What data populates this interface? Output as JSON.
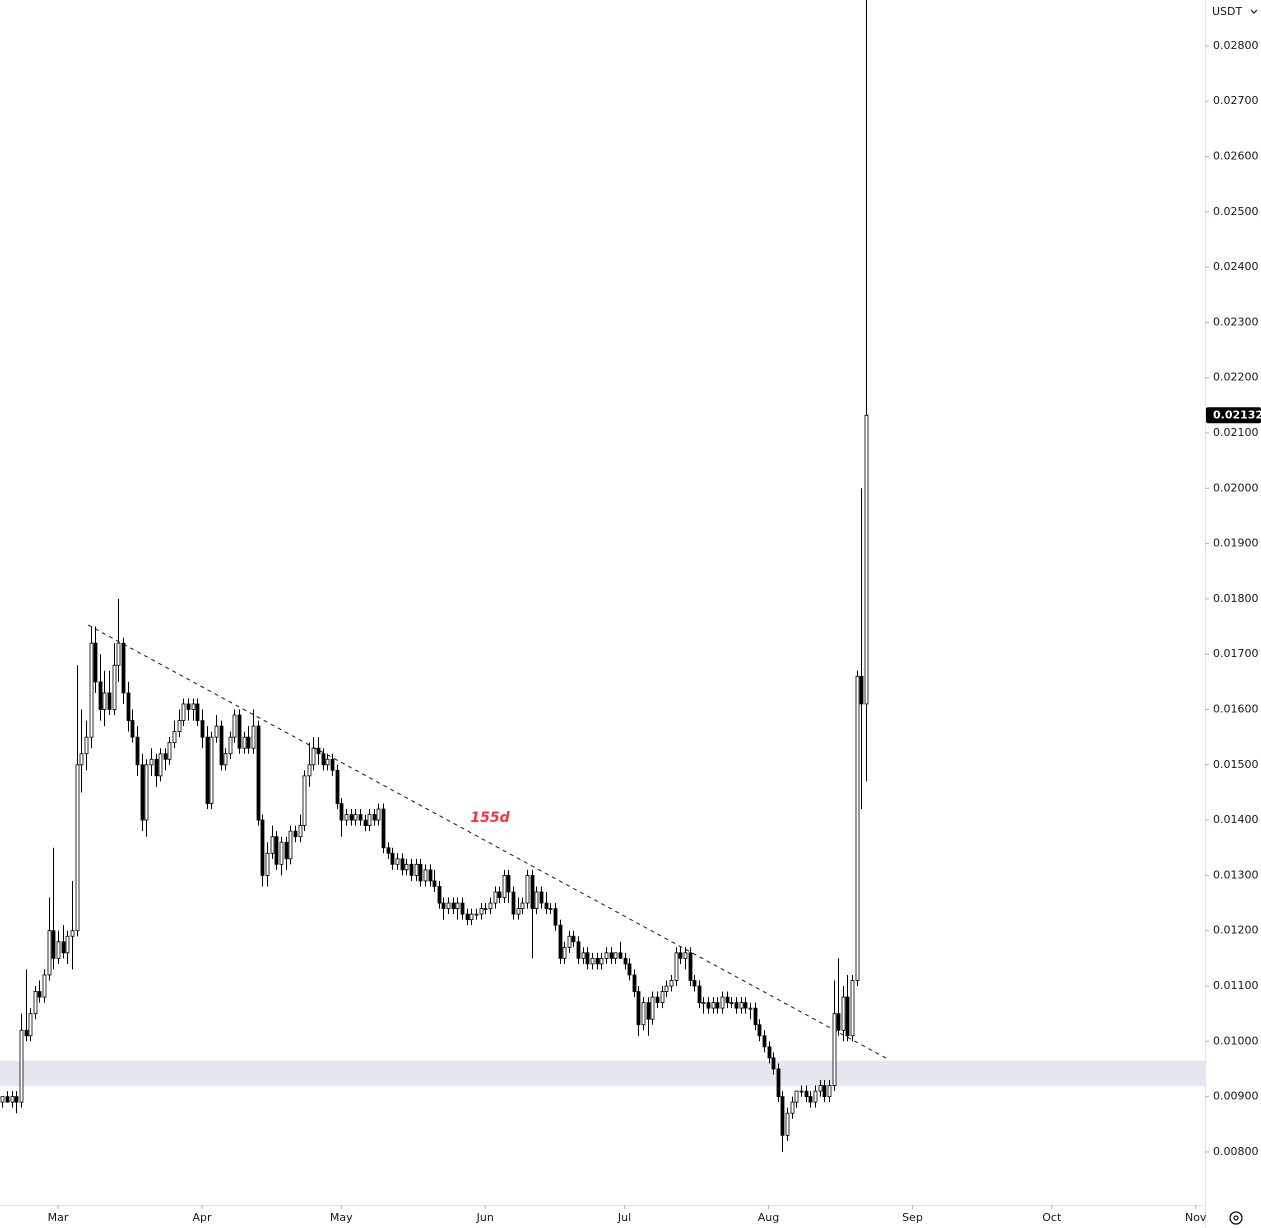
{
  "chart_data": {
    "type": "candlestick",
    "currency": "USDT",
    "last_price": 0.02132,
    "annotation": "155d",
    "up_color": "#ffffff",
    "down_color": "#000000",
    "border_color": "#000000",
    "zone": [
      0.00919,
      0.00965
    ],
    "trendline": {
      "x": [
        18.45,
        191.1
      ],
      "y": [
        0.01753,
        0.00966
      ]
    },
    "xlim": [
      -0.5,
      259
    ],
    "ylim": [
      0.00704,
      0.02883
    ],
    "xticks": [
      {
        "value": 12,
        "label": "Mar"
      },
      {
        "value": 43,
        "label": "Apr"
      },
      {
        "value": 73,
        "label": "May"
      },
      {
        "value": 104,
        "label": "Jun"
      },
      {
        "value": 134,
        "label": "Jul"
      },
      {
        "value": 165,
        "label": "Aug"
      },
      {
        "value": 196,
        "label": "Sep"
      },
      {
        "value": 226,
        "label": "Oct"
      },
      {
        "value": 257,
        "label": "Nov"
      }
    ],
    "yticks": [
      {
        "value": 0.008,
        "label": "0.00800"
      },
      {
        "value": 0.009,
        "label": "0.00900"
      },
      {
        "value": 0.01,
        "label": "0.01000"
      },
      {
        "value": 0.011,
        "label": "0.01100"
      },
      {
        "value": 0.012,
        "label": "0.01200"
      },
      {
        "value": 0.013,
        "label": "0.01300"
      },
      {
        "value": 0.014,
        "label": "0.01400"
      },
      {
        "value": 0.015,
        "label": "0.01500"
      },
      {
        "value": 0.016,
        "label": "0.01600"
      },
      {
        "value": 0.017,
        "label": "0.01700"
      },
      {
        "value": 0.018,
        "label": "0.01800"
      },
      {
        "value": 0.019,
        "label": "0.01900"
      },
      {
        "value": 0.02,
        "label": "0.02000"
      },
      {
        "value": 0.021,
        "label": "0.02100"
      },
      {
        "value": 0.022,
        "label": "0.02200"
      },
      {
        "value": 0.023,
        "label": "0.02300"
      },
      {
        "value": 0.024,
        "label": "0.02400"
      },
      {
        "value": 0.025,
        "label": "0.02500"
      },
      {
        "value": 0.026,
        "label": "0.02600"
      },
      {
        "value": 0.027,
        "label": "0.02700"
      },
      {
        "value": 0.028,
        "label": "0.02800"
      }
    ],
    "ohlc": [
      [
        0.0089,
        0.009,
        0.0088,
        0.009
      ],
      [
        0.009,
        0.0091,
        0.0089,
        0.0089
      ],
      [
        0.0089,
        0.0091,
        0.0088,
        0.009
      ],
      [
        0.009,
        0.0091,
        0.0087,
        0.0089
      ],
      [
        0.0089,
        0.0105,
        0.0088,
        0.0102
      ],
      [
        0.0102,
        0.0113,
        0.01,
        0.0101
      ],
      [
        0.0101,
        0.0106,
        0.01,
        0.0105
      ],
      [
        0.0105,
        0.011,
        0.0104,
        0.0109
      ],
      [
        0.0109,
        0.0111,
        0.0107,
        0.0108
      ],
      [
        0.0108,
        0.0113,
        0.0107,
        0.0112
      ],
      [
        0.0112,
        0.0126,
        0.0111,
        0.012
      ],
      [
        0.012,
        0.0135,
        0.0113,
        0.0115
      ],
      [
        0.0115,
        0.012,
        0.0114,
        0.0118
      ],
      [
        0.0118,
        0.0121,
        0.0115,
        0.0116
      ],
      [
        0.0116,
        0.012,
        0.0114,
        0.0119
      ],
      [
        0.0119,
        0.0129,
        0.0113,
        0.012
      ],
      [
        0.012,
        0.0168,
        0.0119,
        0.015
      ],
      [
        0.015,
        0.016,
        0.0145,
        0.0152
      ],
      [
        0.0152,
        0.0158,
        0.0149,
        0.0155
      ],
      [
        0.0155,
        0.0175,
        0.0153,
        0.0172
      ],
      [
        0.0172,
        0.0175,
        0.0163,
        0.0165
      ],
      [
        0.0165,
        0.017,
        0.0158,
        0.016
      ],
      [
        0.016,
        0.0167,
        0.0157,
        0.0163
      ],
      [
        0.0163,
        0.0167,
        0.0159,
        0.016
      ],
      [
        0.016,
        0.0172,
        0.0159,
        0.0168
      ],
      [
        0.0168,
        0.018,
        0.0165,
        0.0172
      ],
      [
        0.0172,
        0.0173,
        0.0161,
        0.0163
      ],
      [
        0.0163,
        0.0165,
        0.0156,
        0.0158
      ],
      [
        0.0158,
        0.016,
        0.0154,
        0.0155
      ],
      [
        0.0155,
        0.0157,
        0.0148,
        0.015
      ],
      [
        0.015,
        0.0152,
        0.0138,
        0.014
      ],
      [
        0.014,
        0.0151,
        0.0137,
        0.015
      ],
      [
        0.015,
        0.0153,
        0.0148,
        0.0151
      ],
      [
        0.0151,
        0.0152,
        0.0146,
        0.0148
      ],
      [
        0.0148,
        0.0153,
        0.0147,
        0.0152
      ],
      [
        0.0152,
        0.0153,
        0.0149,
        0.0151
      ],
      [
        0.0151,
        0.0155,
        0.015,
        0.0154
      ],
      [
        0.0154,
        0.0158,
        0.0153,
        0.0156
      ],
      [
        0.0156,
        0.016,
        0.0155,
        0.0158
      ],
      [
        0.0158,
        0.0162,
        0.0157,
        0.0161
      ],
      [
        0.0161,
        0.0162,
        0.0158,
        0.016
      ],
      [
        0.016,
        0.0162,
        0.0158,
        0.0161
      ],
      [
        0.0161,
        0.0162,
        0.0157,
        0.0158
      ],
      [
        0.0158,
        0.016,
        0.0153,
        0.0155
      ],
      [
        0.0155,
        0.0157,
        0.0142,
        0.0143
      ],
      [
        0.0143,
        0.0156,
        0.0142,
        0.0155
      ],
      [
        0.0155,
        0.0159,
        0.0154,
        0.0157
      ],
      [
        0.0157,
        0.0158,
        0.0149,
        0.015
      ],
      [
        0.015,
        0.0153,
        0.0149,
        0.0152
      ],
      [
        0.0152,
        0.0156,
        0.0151,
        0.0155
      ],
      [
        0.0155,
        0.016,
        0.0154,
        0.0159
      ],
      [
        0.0159,
        0.016,
        0.0152,
        0.0153
      ],
      [
        0.0153,
        0.0156,
        0.0152,
        0.0155
      ],
      [
        0.0155,
        0.0157,
        0.0152,
        0.0153
      ],
      [
        0.0153,
        0.016,
        0.0152,
        0.0157
      ],
      [
        0.0157,
        0.0158,
        0.0139,
        0.014
      ],
      [
        0.014,
        0.0141,
        0.0128,
        0.013
      ],
      [
        0.013,
        0.0136,
        0.0128,
        0.0134
      ],
      [
        0.0134,
        0.0139,
        0.0133,
        0.0137
      ],
      [
        0.0137,
        0.0138,
        0.0131,
        0.0132
      ],
      [
        0.0132,
        0.0137,
        0.013,
        0.0136
      ],
      [
        0.0136,
        0.0137,
        0.0131,
        0.0133
      ],
      [
        0.0133,
        0.0139,
        0.0132,
        0.0138
      ],
      [
        0.0138,
        0.0139,
        0.0136,
        0.0137
      ],
      [
        0.0137,
        0.0141,
        0.0136,
        0.0139
      ],
      [
        0.0139,
        0.0149,
        0.0138,
        0.0148
      ],
      [
        0.0148,
        0.0154,
        0.0146,
        0.015
      ],
      [
        0.015,
        0.0155,
        0.0149,
        0.0153
      ],
      [
        0.0153,
        0.0155,
        0.015,
        0.0152
      ],
      [
        0.0152,
        0.0153,
        0.0149,
        0.015
      ],
      [
        0.015,
        0.0152,
        0.0149,
        0.0151
      ],
      [
        0.0151,
        0.0152,
        0.0148,
        0.0149
      ],
      [
        0.0149,
        0.015,
        0.0142,
        0.0143
      ],
      [
        0.0143,
        0.0144,
        0.0137,
        0.014
      ],
      [
        0.014,
        0.0142,
        0.0139,
        0.0141
      ],
      [
        0.0141,
        0.0142,
        0.0139,
        0.014
      ],
      [
        0.014,
        0.0142,
        0.0139,
        0.0141
      ],
      [
        0.0141,
        0.0142,
        0.0139,
        0.014
      ],
      [
        0.014,
        0.0141,
        0.0138,
        0.0139
      ],
      [
        0.0139,
        0.0142,
        0.0138,
        0.0141
      ],
      [
        0.0141,
        0.0142,
        0.0139,
        0.014
      ],
      [
        0.014,
        0.0143,
        0.0139,
        0.0142
      ],
      [
        0.0142,
        0.0143,
        0.0134,
        0.0135
      ],
      [
        0.0135,
        0.0136,
        0.0133,
        0.0134
      ],
      [
        0.0134,
        0.0135,
        0.0131,
        0.0132
      ],
      [
        0.0132,
        0.0134,
        0.0131,
        0.0133
      ],
      [
        0.0133,
        0.0134,
        0.013,
        0.0131
      ],
      [
        0.0131,
        0.0133,
        0.013,
        0.0132
      ],
      [
        0.0132,
        0.0133,
        0.0129,
        0.013
      ],
      [
        0.013,
        0.0133,
        0.0129,
        0.0132
      ],
      [
        0.0132,
        0.0133,
        0.0128,
        0.0129
      ],
      [
        0.0129,
        0.0132,
        0.0128,
        0.0131
      ],
      [
        0.0131,
        0.0132,
        0.0128,
        0.0129
      ],
      [
        0.0129,
        0.0131,
        0.0127,
        0.0128
      ],
      [
        0.0128,
        0.0129,
        0.0124,
        0.0125
      ],
      [
        0.0125,
        0.0126,
        0.0122,
        0.0124
      ],
      [
        0.0124,
        0.0126,
        0.0123,
        0.0125
      ],
      [
        0.0125,
        0.0126,
        0.0123,
        0.0124
      ],
      [
        0.0124,
        0.0126,
        0.0122,
        0.0125
      ],
      [
        0.0125,
        0.0126,
        0.0122,
        0.0123
      ],
      [
        0.0123,
        0.0124,
        0.0121,
        0.0122
      ],
      [
        0.0122,
        0.0124,
        0.0121,
        0.0123
      ],
      [
        0.0123,
        0.0124,
        0.0122,
        0.0123
      ],
      [
        0.0123,
        0.0125,
        0.0122,
        0.0124
      ],
      [
        0.0124,
        0.0125,
        0.0123,
        0.0124
      ],
      [
        0.0124,
        0.0126,
        0.0123,
        0.0125
      ],
      [
        0.0125,
        0.0128,
        0.0124,
        0.0127
      ],
      [
        0.0127,
        0.0128,
        0.0125,
        0.0126
      ],
      [
        0.0126,
        0.0131,
        0.0125,
        0.013
      ],
      [
        0.013,
        0.0131,
        0.0125,
        0.0127
      ],
      [
        0.0127,
        0.0128,
        0.0122,
        0.0123
      ],
      [
        0.0123,
        0.0126,
        0.0122,
        0.0124
      ],
      [
        0.0124,
        0.0126,
        0.0123,
        0.0125
      ],
      [
        0.0125,
        0.0131,
        0.0124,
        0.013
      ],
      [
        0.013,
        0.0131,
        0.0115,
        0.0124
      ],
      [
        0.0124,
        0.0128,
        0.0123,
        0.0127
      ],
      [
        0.0127,
        0.0128,
        0.0124,
        0.0125
      ],
      [
        0.0125,
        0.0127,
        0.0123,
        0.0124
      ],
      [
        0.0124,
        0.0125,
        0.0123,
        0.0124
      ],
      [
        0.0124,
        0.0125,
        0.012,
        0.0121
      ],
      [
        0.0121,
        0.0122,
        0.0114,
        0.0115
      ],
      [
        0.0115,
        0.0118,
        0.0114,
        0.0117
      ],
      [
        0.0117,
        0.012,
        0.0116,
        0.0119
      ],
      [
        0.0119,
        0.012,
        0.0117,
        0.0118
      ],
      [
        0.0118,
        0.0119,
        0.0114,
        0.0115
      ],
      [
        0.0115,
        0.0117,
        0.0114,
        0.0116
      ],
      [
        0.0116,
        0.0117,
        0.0113,
        0.0114
      ],
      [
        0.0114,
        0.0116,
        0.0113,
        0.0115
      ],
      [
        0.0115,
        0.0116,
        0.0113,
        0.0114
      ],
      [
        0.0114,
        0.0116,
        0.0113,
        0.0115
      ],
      [
        0.0115,
        0.0117,
        0.0114,
        0.0116
      ],
      [
        0.0116,
        0.0117,
        0.0114,
        0.0115
      ],
      [
        0.0115,
        0.0116,
        0.0114,
        0.0116
      ],
      [
        0.0116,
        0.0118,
        0.0115,
        0.0115
      ],
      [
        0.0115,
        0.0116,
        0.0113,
        0.0114
      ],
      [
        0.0114,
        0.0115,
        0.0111,
        0.0112
      ],
      [
        0.0112,
        0.0113,
        0.0108,
        0.0109
      ],
      [
        0.0109,
        0.011,
        0.0101,
        0.0103
      ],
      [
        0.0103,
        0.0108,
        0.0102,
        0.0107
      ],
      [
        0.0107,
        0.0108,
        0.0101,
        0.0104
      ],
      [
        0.0104,
        0.0109,
        0.0103,
        0.0108
      ],
      [
        0.0108,
        0.0109,
        0.0106,
        0.0107
      ],
      [
        0.0107,
        0.011,
        0.0106,
        0.0109
      ],
      [
        0.0109,
        0.0111,
        0.0108,
        0.011
      ],
      [
        0.011,
        0.0112,
        0.0109,
        0.0111
      ],
      [
        0.0111,
        0.0117,
        0.011,
        0.0116
      ],
      [
        0.0116,
        0.0117,
        0.0114,
        0.0115
      ],
      [
        0.0115,
        0.0117,
        0.0113,
        0.0116
      ],
      [
        0.0116,
        0.0117,
        0.011,
        0.0111
      ],
      [
        0.0111,
        0.0112,
        0.0109,
        0.011
      ],
      [
        0.011,
        0.0111,
        0.0106,
        0.0107
      ],
      [
        0.0107,
        0.0108,
        0.0105,
        0.0107
      ],
      [
        0.0107,
        0.0108,
        0.0105,
        0.0106
      ],
      [
        0.0106,
        0.0108,
        0.0105,
        0.0107
      ],
      [
        0.0107,
        0.0108,
        0.0105,
        0.0106
      ],
      [
        0.0106,
        0.0109,
        0.0105,
        0.0108
      ],
      [
        0.0108,
        0.0109,
        0.0106,
        0.0107
      ],
      [
        0.0107,
        0.0108,
        0.0106,
        0.0107
      ],
      [
        0.0107,
        0.0108,
        0.0105,
        0.0106
      ],
      [
        0.0106,
        0.0108,
        0.0105,
        0.0107
      ],
      [
        0.0107,
        0.0108,
        0.0105,
        0.0106
      ],
      [
        0.0106,
        0.0107,
        0.0104,
        0.0106
      ],
      [
        0.0106,
        0.0107,
        0.0102,
        0.0103
      ],
      [
        0.0103,
        0.0104,
        0.01,
        0.0101
      ],
      [
        0.0101,
        0.0102,
        0.0098,
        0.0099
      ],
      [
        0.0099,
        0.01,
        0.0096,
        0.0097
      ],
      [
        0.0097,
        0.0098,
        0.0094,
        0.0095
      ],
      [
        0.0095,
        0.0096,
        0.0089,
        0.009
      ],
      [
        0.009,
        0.0091,
        0.008,
        0.0083
      ],
      [
        0.0083,
        0.0088,
        0.0082,
        0.0087
      ],
      [
        0.0087,
        0.009,
        0.0086,
        0.0089
      ],
      [
        0.0089,
        0.0091,
        0.0088,
        0.0091
      ],
      [
        0.0091,
        0.0092,
        0.009,
        0.0091
      ],
      [
        0.0091,
        0.0092,
        0.0089,
        0.009
      ],
      [
        0.009,
        0.0091,
        0.0088,
        0.0089
      ],
      [
        0.0089,
        0.0092,
        0.0088,
        0.0091
      ],
      [
        0.0091,
        0.0093,
        0.009,
        0.0092
      ],
      [
        0.0092,
        0.0093,
        0.0089,
        0.009
      ],
      [
        0.009,
        0.0093,
        0.0089,
        0.0092
      ],
      [
        0.0092,
        0.0111,
        0.0091,
        0.0105
      ],
      [
        0.0105,
        0.0115,
        0.0101,
        0.0102
      ],
      [
        0.0102,
        0.011,
        0.01,
        0.0108
      ],
      [
        0.0108,
        0.0112,
        0.01,
        0.0101
      ],
      [
        0.0101,
        0.0112,
        0.01,
        0.0111
      ],
      [
        0.0111,
        0.0167,
        0.011,
        0.0166
      ],
      [
        0.0166,
        0.02,
        0.0142,
        0.0161
      ],
      [
        0.0161,
        0.029,
        0.0147,
        0.02132
      ]
    ]
  }
}
